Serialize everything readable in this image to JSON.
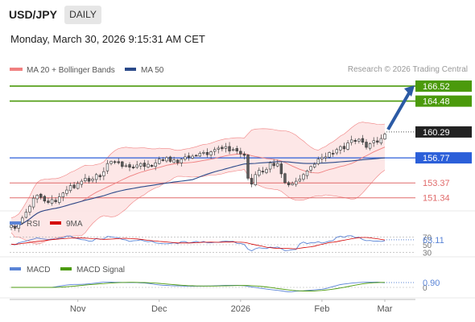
{
  "header": {
    "symbol": "USD/JPY",
    "timeframe": "DAILY",
    "datetime": "Monday, March 30, 2026 9:15:31 AM CET",
    "credit": "Research © 2026 Trading Central"
  },
  "colors": {
    "bollinger": "#f08080",
    "bollinger_band_fill": "#fde3e3",
    "ma50": "#2b4a8a",
    "resistance_green": "#4b9a0c",
    "support_blue": "#2b5fd9",
    "support_red": "#e06a6a",
    "last_price_box": "#222222",
    "arrow": "#2b5aa5",
    "rsi": "#5a84d6",
    "rsi_ma": "#d40000",
    "macd": "#5a84d6",
    "macd_signal": "#4b9a0c"
  },
  "chart_data": [
    {
      "type": "candlestick",
      "legend": [
        {
          "name": "MA 20 + Bollinger Bands",
          "color": "#f08080"
        },
        {
          "name": "MA 50",
          "color": "#2b4a8a"
        }
      ],
      "x_ticks": [
        "Nov",
        "Dec",
        "2026",
        "Feb",
        "Mar"
      ],
      "y_range": [
        150.0,
        167.5
      ],
      "closes": [
        147.6,
        147.2,
        147.9,
        148.6,
        149.4,
        150.2,
        151.3,
        151.7,
        151.4,
        150.9,
        150.7,
        151.1,
        150.8,
        151.5,
        152.0,
        152.4,
        153.0,
        152.7,
        153.3,
        153.6,
        154.0,
        153.6,
        153.9,
        154.5,
        154.2,
        154.9,
        156.0,
        156.3,
        156.2,
        156.1,
        155.6,
        155.7,
        155.5,
        155.4,
        155.8,
        156.0,
        155.6,
        155.9,
        155.6,
        156.1,
        156.6,
        156.4,
        156.8,
        156.3,
        156.5,
        156.1,
        156.6,
        156.9,
        156.8,
        157.0,
        157.1,
        157.4,
        157.5,
        157.2,
        157.6,
        157.9,
        158.1,
        158.0,
        158.3,
        157.7,
        157.9,
        157.7,
        157.3,
        157.1,
        154.0,
        153.2,
        154.5,
        155.1,
        154.9,
        155.2,
        156.1,
        155.7,
        156.0,
        154.6,
        153.4,
        153.1,
        153.3,
        153.6,
        153.9,
        154.5,
        155.0,
        155.6,
        155.9,
        156.6,
        156.8,
        156.9,
        157.5,
        157.3,
        157.9,
        158.3,
        158.0,
        158.8,
        159.2,
        159.0,
        159.3,
        158.9,
        158.2,
        158.7,
        159.1,
        158.9,
        159.4,
        160.0
      ],
      "levels": [
        {
          "value": 166.52,
          "role": "target",
          "color": "#4b9a0c"
        },
        {
          "value": 164.48,
          "role": "resistance",
          "color": "#4b9a0c"
        },
        {
          "value": 160.29,
          "role": "last price",
          "color": "#222222"
        },
        {
          "value": 156.77,
          "role": "pivot",
          "color": "#2b5fd9"
        },
        {
          "value": 153.37,
          "role": "support",
          "color": "#e06a6a"
        },
        {
          "value": 151.34,
          "role": "support",
          "color": "#e06a6a"
        }
      ],
      "forecast_arrow": {
        "from": 160.29,
        "to": 166.52
      }
    },
    {
      "type": "line",
      "panel": "RSI",
      "legend": [
        {
          "name": "RSI",
          "color": "#5a84d6"
        },
        {
          "name": "9MA",
          "color": "#d40000"
        }
      ],
      "y_ticks": [
        70,
        50,
        30
      ],
      "y_range": [
        20,
        80
      ],
      "last_value_label": "63.11"
    },
    {
      "type": "line",
      "panel": "MACD",
      "legend": [
        {
          "name": "MACD",
          "color": "#5a84d6"
        },
        {
          "name": "MACD Signal",
          "color": "#4b9a0c"
        }
      ],
      "y_ticks": [
        0
      ],
      "last_value_label": "0.90"
    }
  ]
}
